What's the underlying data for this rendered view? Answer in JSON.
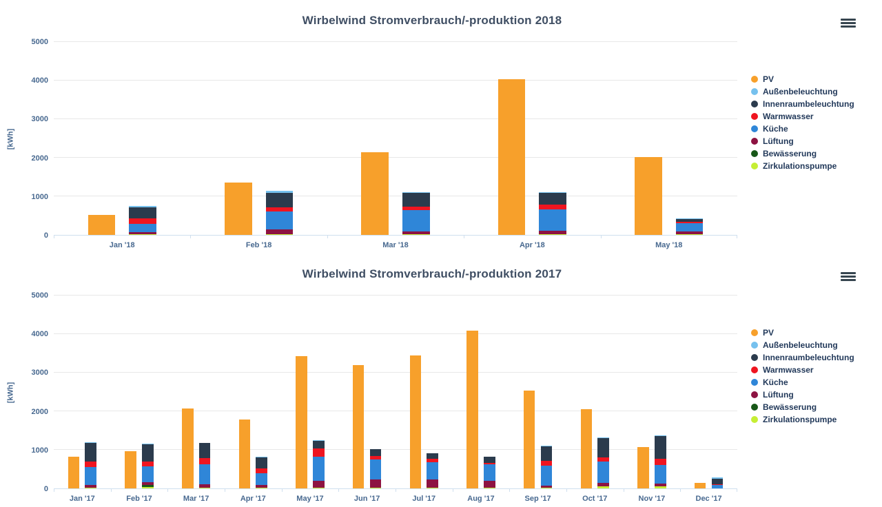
{
  "page": {
    "background": "#ffffff"
  },
  "icons": {
    "chart_context_menu": "hamburger-menu-icon"
  },
  "colors": {
    "title_text": "#3f4e63",
    "axis_text": "#47688f",
    "legend_text": "#22395a",
    "gridline": "#e7e7e7",
    "axis_line": "#cfdfee"
  },
  "chart_data": [
    {
      "type": "bar",
      "subtype": "column-stacked",
      "title": "Wirbelwind Stromverbrauch/-produktion 2018",
      "xlabel": "",
      "ylabel": "[kWh]",
      "ylim": [
        0,
        5000
      ],
      "ytick_interval": 1000,
      "yticks": [
        0,
        1000,
        2000,
        3000,
        4000,
        5000
      ],
      "grid": true,
      "legend_position": "right",
      "categories": [
        "Jan '18",
        "Feb '18",
        "Mar '18",
        "Apr '18",
        "May '18"
      ],
      "series": [
        {
          "name": "PV",
          "color": "#f7a02b",
          "stack": "produktion",
          "values": [
            520,
            1350,
            2150,
            4040,
            2010
          ]
        },
        {
          "name": "Außenbeleuchtung",
          "color": "#76c1ee",
          "stack": "verbrauch",
          "values": [
            40,
            50,
            25,
            20,
            20
          ]
        },
        {
          "name": "Innenraumbeleuchtung",
          "color": "#2b3b4d",
          "stack": "verbrauch",
          "values": [
            285,
            375,
            350,
            300,
            75
          ]
        },
        {
          "name": "Warmwasser",
          "color": "#ef1520",
          "stack": "verbrauch",
          "values": [
            135,
            95,
            100,
            130,
            35
          ]
        },
        {
          "name": "Küche",
          "color": "#2f86d8",
          "stack": "verbrauch",
          "values": [
            230,
            480,
            550,
            560,
            215
          ]
        },
        {
          "name": "Lüftung",
          "color": "#8d1342",
          "stack": "verbrauch",
          "values": [
            55,
            110,
            70,
            90,
            80
          ]
        },
        {
          "name": "Bewässerung",
          "color": "#175718",
          "stack": "verbrauch",
          "values": [
            0,
            0,
            0,
            0,
            0
          ]
        },
        {
          "name": "Zirkulationspumpe",
          "color": "#c6ee34",
          "stack": "verbrauch",
          "values": [
            10,
            25,
            15,
            10,
            10
          ]
        }
      ]
    },
    {
      "type": "bar",
      "subtype": "column-stacked",
      "title": "Wirbelwind Stromverbrauch/-produktion 2017",
      "xlabel": "",
      "ylabel": "[kWh]",
      "ylim": [
        0,
        5000
      ],
      "ytick_interval": 1000,
      "yticks": [
        0,
        1000,
        2000,
        3000,
        4000,
        5000
      ],
      "grid": true,
      "legend_position": "right",
      "categories": [
        "Jan '17",
        "Feb '17",
        "Mar '17",
        "Apr '17",
        "May '17",
        "Jun '17",
        "Jul '17",
        "Aug '17",
        "Sep '17",
        "Oct '17",
        "Nov '17",
        "Dec '17"
      ],
      "series": [
        {
          "name": "PV",
          "color": "#f7a02b",
          "stack": "produktion",
          "values": [
            830,
            970,
            2070,
            1780,
            3430,
            3200,
            3440,
            4090,
            2530,
            2050,
            1070,
            150
          ]
        },
        {
          "name": "Außenbeleuchtung",
          "color": "#76c1ee",
          "stack": "verbrauch",
          "values": [
            20,
            15,
            10,
            5,
            5,
            5,
            5,
            5,
            10,
            15,
            25,
            50
          ]
        },
        {
          "name": "Innenraumbeleuchtung",
          "color": "#2b3b4d",
          "stack": "verbrauch",
          "values": [
            485,
            455,
            395,
            300,
            210,
            180,
            150,
            160,
            370,
            500,
            595,
            130
          ]
        },
        {
          "name": "Warmwasser",
          "color": "#ef1520",
          "stack": "verbrauch",
          "values": [
            135,
            130,
            150,
            120,
            210,
            95,
            75,
            25,
            135,
            120,
            160,
            25
          ]
        },
        {
          "name": "Küche",
          "color": "#2f86d8",
          "stack": "verbrauch",
          "values": [
            460,
            405,
            520,
            295,
            620,
            515,
            455,
            430,
            520,
            555,
            475,
            90
          ]
        },
        {
          "name": "Lüftung",
          "color": "#8d1342",
          "stack": "verbrauch",
          "values": [
            85,
            70,
            100,
            85,
            190,
            220,
            220,
            190,
            55,
            85,
            70,
            0
          ]
        },
        {
          "name": "Bewässerung",
          "color": "#175718",
          "stack": "verbrauch",
          "values": [
            0,
            50,
            0,
            0,
            0,
            0,
            0,
            0,
            0,
            0,
            0,
            0
          ]
        },
        {
          "name": "Zirkulationspumpe",
          "color": "#c6ee34",
          "stack": "verbrauch",
          "values": [
            10,
            40,
            10,
            10,
            10,
            10,
            10,
            10,
            10,
            50,
            55,
            0
          ]
        }
      ]
    }
  ]
}
